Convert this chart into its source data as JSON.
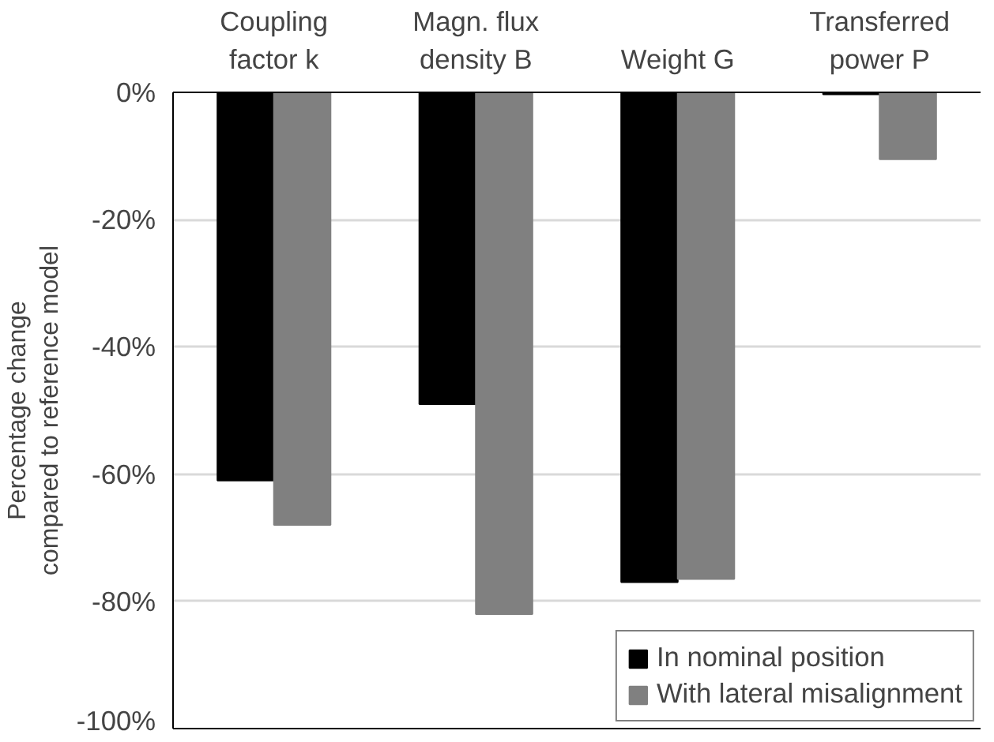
{
  "chart_data": {
    "type": "bar",
    "ylabel": "Percentage change\ncompared to reference model",
    "categories": [
      "Coupling\nfactor k",
      "Magn. flux\ndensity B",
      "Weight G",
      "Transferred\npower P"
    ],
    "series": [
      {
        "name": "In nominal position",
        "color": "#000000",
        "values": [
          -61,
          -49,
          -77,
          -0.3
        ]
      },
      {
        "name": "With lateral misalignment",
        "color": "#808080",
        "values": [
          -68,
          -82,
          -76.5,
          -10.5
        ]
      }
    ],
    "ylim": [
      -100,
      0
    ],
    "yticks": [
      {
        "value": -100,
        "label": "-100%"
      },
      {
        "value": -80,
        "label": "-80%"
      },
      {
        "value": -60,
        "label": "-60%"
      },
      {
        "value": -40,
        "label": "-40%"
      },
      {
        "value": -20,
        "label": "-20%"
      },
      {
        "value": 0,
        "label": "0%"
      }
    ],
    "grid": "y",
    "legend": "bottom right"
  }
}
